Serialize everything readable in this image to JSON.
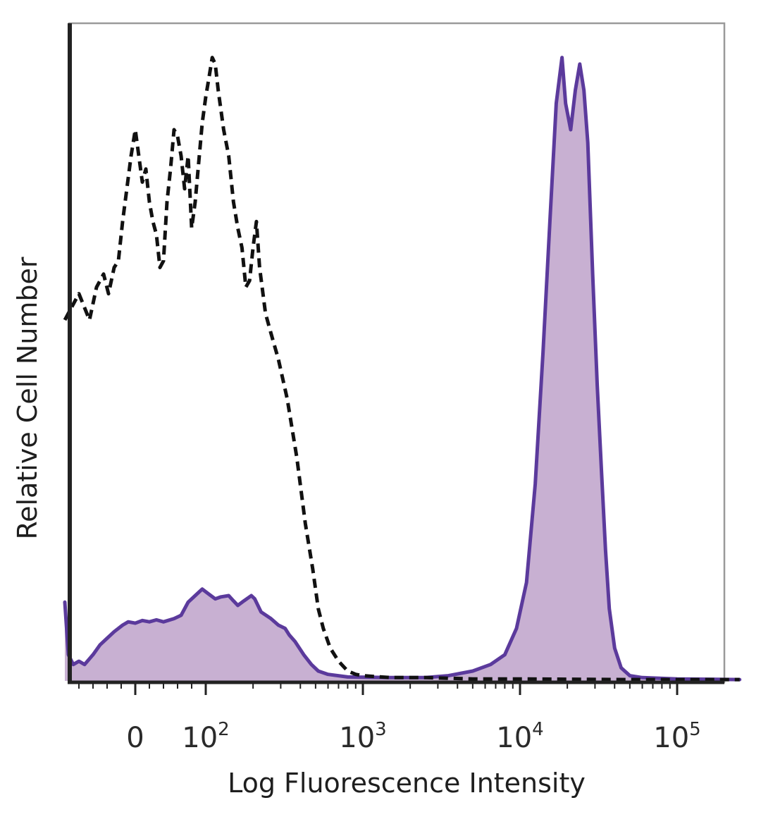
{
  "chart_data": {
    "type": "area",
    "xlabel": "Log Fluorescence Intensity",
    "ylabel": "Relative Cell Number",
    "x_scale": "biexponential",
    "xlim": [
      -100,
      250000
    ],
    "ylim": [
      0,
      100
    ],
    "grid": false,
    "legend": "none",
    "x_tick_labels": [
      {
        "value": 0,
        "base": "0",
        "exp": ""
      },
      {
        "value": 100,
        "base": "10",
        "exp": "2"
      },
      {
        "value": 1000,
        "base": "10",
        "exp": "3"
      },
      {
        "value": 10000,
        "base": "10",
        "exp": "4"
      },
      {
        "value": 100000,
        "base": "10",
        "exp": "5"
      }
    ],
    "colors": {
      "stained_line": "#5b3a9c",
      "stained_fill": "#c8b0d2",
      "control_line": "#111111",
      "axis": "#222222",
      "frame": "#9a9a9a"
    },
    "series": [
      {
        "style": "dashed",
        "points": [
          [
            -100,
            55
          ],
          [
            -80,
            59
          ],
          [
            -65,
            55
          ],
          [
            -55,
            60
          ],
          [
            -45,
            62
          ],
          [
            -38,
            59
          ],
          [
            -30,
            63
          ],
          [
            -24,
            64
          ],
          [
            -18,
            70
          ],
          [
            -12,
            75
          ],
          [
            -6,
            80
          ],
          [
            0,
            84
          ],
          [
            5,
            80
          ],
          [
            10,
            76
          ],
          [
            15,
            78
          ],
          [
            20,
            73
          ],
          [
            25,
            70
          ],
          [
            30,
            68
          ],
          [
            35,
            63
          ],
          [
            40,
            64
          ],
          [
            45,
            73
          ],
          [
            50,
            78
          ],
          [
            55,
            84
          ],
          [
            60,
            83
          ],
          [
            65,
            80
          ],
          [
            70,
            75
          ],
          [
            75,
            80
          ],
          [
            80,
            69
          ],
          [
            85,
            73
          ],
          [
            90,
            79
          ],
          [
            95,
            85
          ],
          [
            100,
            89
          ],
          [
            105,
            92
          ],
          [
            110,
            95
          ],
          [
            115,
            94
          ],
          [
            120,
            90
          ],
          [
            130,
            84
          ],
          [
            140,
            80
          ],
          [
            150,
            73
          ],
          [
            160,
            69
          ],
          [
            170,
            66
          ],
          [
            180,
            60
          ],
          [
            190,
            61
          ],
          [
            200,
            66
          ],
          [
            210,
            70
          ],
          [
            220,
            63
          ],
          [
            240,
            56
          ],
          [
            260,
            53
          ],
          [
            290,
            49
          ],
          [
            330,
            43
          ],
          [
            380,
            34
          ],
          [
            430,
            24
          ],
          [
            480,
            17
          ],
          [
            520,
            11
          ],
          [
            560,
            8
          ],
          [
            620,
            5
          ],
          [
            700,
            3
          ],
          [
            800,
            1.5
          ],
          [
            900,
            1
          ],
          [
            1000,
            0.8
          ],
          [
            1500,
            0.5
          ],
          [
            2500,
            0.5
          ],
          [
            5000,
            0.3
          ],
          [
            10000,
            0.3
          ],
          [
            50000,
            0.2
          ],
          [
            100000,
            0.2
          ],
          [
            250000,
            0.2
          ]
        ]
      },
      {
        "style": "filled",
        "points": [
          [
            -100,
            12
          ],
          [
            -95,
            4
          ],
          [
            -88,
            2.5
          ],
          [
            -80,
            3
          ],
          [
            -72,
            2.5
          ],
          [
            -60,
            4
          ],
          [
            -50,
            5.5
          ],
          [
            -40,
            6.5
          ],
          [
            -30,
            7.5
          ],
          [
            -18,
            8.5
          ],
          [
            -10,
            9
          ],
          [
            0,
            8.8
          ],
          [
            10,
            9.2
          ],
          [
            20,
            9
          ],
          [
            30,
            9.3
          ],
          [
            40,
            9
          ],
          [
            55,
            9.5
          ],
          [
            65,
            10
          ],
          [
            75,
            12
          ],
          [
            85,
            13
          ],
          [
            95,
            14
          ],
          [
            105,
            13.2
          ],
          [
            115,
            12.5
          ],
          [
            125,
            12.8
          ],
          [
            140,
            13
          ],
          [
            150,
            12.2
          ],
          [
            160,
            11.5
          ],
          [
            175,
            12.2
          ],
          [
            195,
            13
          ],
          [
            205,
            12.5
          ],
          [
            225,
            10.5
          ],
          [
            260,
            9.5
          ],
          [
            290,
            8.5
          ],
          [
            320,
            8
          ],
          [
            340,
            7
          ],
          [
            370,
            6
          ],
          [
            420,
            4
          ],
          [
            470,
            2.5
          ],
          [
            520,
            1.5
          ],
          [
            600,
            1
          ],
          [
            800,
            0.6
          ],
          [
            1500,
            0.5
          ],
          [
            2500,
            0.5
          ],
          [
            3500,
            0.8
          ],
          [
            5000,
            1.5
          ],
          [
            6500,
            2.5
          ],
          [
            8000,
            4
          ],
          [
            9500,
            8
          ],
          [
            11000,
            15
          ],
          [
            12500,
            30
          ],
          [
            14000,
            50
          ],
          [
            15500,
            70
          ],
          [
            17000,
            88
          ],
          [
            18500,
            95
          ],
          [
            19500,
            88
          ],
          [
            21000,
            84
          ],
          [
            22500,
            90
          ],
          [
            24000,
            94
          ],
          [
            25500,
            90
          ],
          [
            27000,
            82
          ],
          [
            29000,
            62
          ],
          [
            31000,
            45
          ],
          [
            33000,
            32
          ],
          [
            35000,
            20
          ],
          [
            37000,
            11
          ],
          [
            40000,
            5
          ],
          [
            44000,
            2
          ],
          [
            50000,
            0.8
          ],
          [
            60000,
            0.5
          ],
          [
            100000,
            0.3
          ],
          [
            250000,
            0.2
          ]
        ]
      }
    ]
  }
}
